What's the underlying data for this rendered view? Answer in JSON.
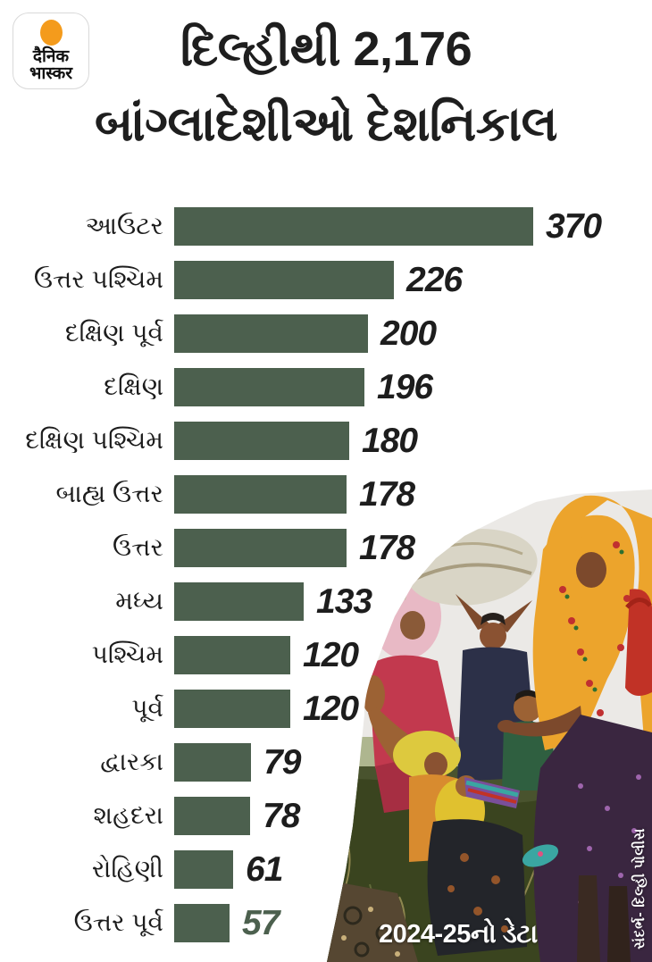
{
  "logo": {
    "line1": "दैनिक",
    "line2": "भास्कर",
    "sun_color": "#f49b1c"
  },
  "title": {
    "line1": "દિલ્હીથી 2,176",
    "line2": "બાંગ્લાદેશીઓ દેશનિકાલ"
  },
  "chart_data": {
    "type": "bar",
    "orientation": "horizontal",
    "title": "દિલ્હીથી 2,176 બાંગ્લાદેશીઓ દેશનિકાલ",
    "categories": [
      "આઉટર",
      "ઉત્તર પશ્ચિમ",
      "દક્ષિણ પૂર્વ",
      "દક્ષિણ",
      "દક્ષિણ પશ્ચિમ",
      "બાહ્ય ઉત્તર",
      "ઉત્તર",
      "મધ્ય",
      "પશ્ચિમ",
      "પૂર્વ",
      "દ્વારકા",
      "શહદરા",
      "રોહિણી",
      "ઉત્તર પૂર્વ"
    ],
    "values": [
      370,
      226,
      200,
      196,
      180,
      178,
      178,
      133,
      120,
      120,
      79,
      78,
      61,
      57
    ],
    "xlim": [
      0,
      370
    ],
    "grid": false,
    "legend": false,
    "bar_color": "#4c604e",
    "value_color": "#1d1d1d",
    "last_value_color": "#4c604e",
    "label_color": "#1c1c1c"
  },
  "footer": {
    "note": "2024-25નો ડેટા",
    "source": "સંદર્ભ- દિલ્હી પોલીસ"
  }
}
